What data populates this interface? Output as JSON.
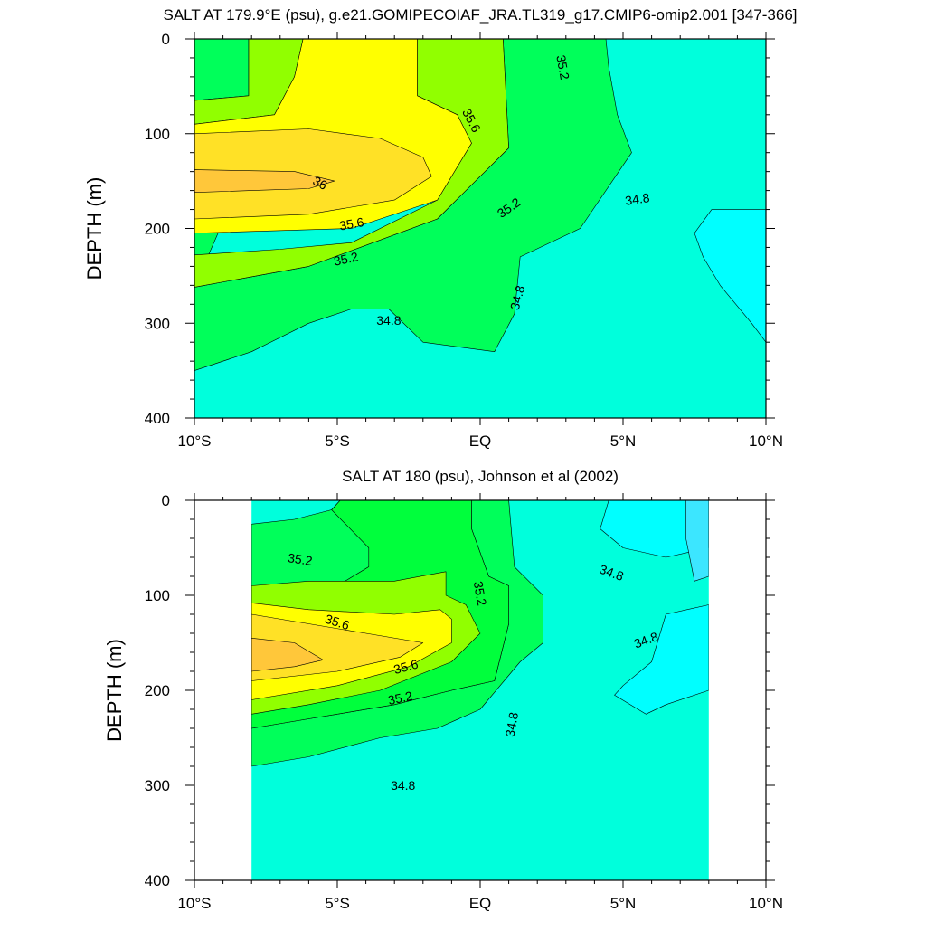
{
  "chart_data": [
    {
      "type": "contour",
      "title": "SALT AT 179.9°E (psu), g.e21.GOMIPECOIAF_JRA.TL319_g17.CMIP6-omip2.001 [347-366]",
      "ylabel": "DEPTH (m)",
      "xlabel": "",
      "x_ticks": [
        "10°S",
        "5°S",
        "EQ",
        "5°N",
        "10°N"
      ],
      "x_tick_values": [
        -10,
        -5,
        0,
        5,
        10
      ],
      "y_ticks": [
        "0",
        "100",
        "200",
        "300",
        "400"
      ],
      "y_tick_values": [
        0,
        100,
        200,
        300,
        400
      ],
      "xlim": [
        -10,
        10
      ],
      "ylim": [
        400,
        0
      ],
      "data_xlim": [
        -10,
        10
      ],
      "contour_interval": 0.2,
      "contour_labels": [
        {
          "text": "35.2",
          "x": 2.9,
          "y": 30,
          "angle": 80
        },
        {
          "text": "35.6",
          "x": -0.3,
          "y": 86,
          "angle": 62
        },
        {
          "text": "36",
          "x": -5.6,
          "y": 152,
          "angle": 28
        },
        {
          "text": "35.2",
          "x": 1.0,
          "y": 178,
          "angle": -35
        },
        {
          "text": "34.8",
          "x": 5.5,
          "y": 169,
          "angle": -8
        },
        {
          "text": "35.6",
          "x": -4.5,
          "y": 195,
          "angle": -10
        },
        {
          "text": "35.2",
          "x": -4.7,
          "y": 232,
          "angle": -12
        },
        {
          "text": "34.8",
          "x": 1.3,
          "y": 273,
          "angle": -75
        },
        {
          "text": "34.8",
          "x": -3.2,
          "y": 297,
          "angle": 0
        }
      ],
      "regions": [
        {
          "value": 35.0,
          "color": "#00ff5a",
          "points": [
            [
              -10,
              0
            ],
            [
              -8.1,
              0
            ],
            [
              -8.1,
              60
            ],
            [
              -10,
              65
            ]
          ]
        },
        {
          "value": 35.0,
          "color": "#00ff5a",
          "points": [
            [
              -6.2,
              0
            ],
            [
              -4.2,
              0
            ],
            [
              -3.5,
              15
            ],
            [
              -4.0,
              150
            ],
            [
              -10,
              160
            ],
            [
              -10,
              350
            ],
            [
              -8,
              330
            ],
            [
              -6,
              300
            ],
            [
              -4.5,
              285
            ],
            [
              -3.2,
              285
            ],
            [
              -2,
              320
            ],
            [
              0.5,
              330
            ],
            [
              1.2,
              290
            ],
            [
              1.4,
              230
            ],
            [
              3.5,
              200
            ],
            [
              5.3,
              120
            ],
            [
              4.8,
              80
            ],
            [
              4.5,
              30
            ],
            [
              4.4,
              0
            ],
            [
              0.8,
              0
            ],
            [
              1.0,
              115
            ],
            [
              -1.5,
              190
            ],
            [
              -6,
              240
            ],
            [
              -10,
              262
            ]
          ]
        },
        {
          "value": 35.4,
          "color": "#91ff00",
          "points": [
            [
              -10,
              65
            ],
            [
              -8.1,
              60
            ],
            [
              -8.1,
              0
            ],
            [
              -6.2,
              0
            ],
            [
              -6.5,
              40
            ],
            [
              -7.2,
              80
            ],
            [
              -10,
              90
            ]
          ]
        },
        {
          "value": 35.4,
          "color": "#91ff00",
          "points": [
            [
              -2.2,
              0
            ],
            [
              -2.2,
              60
            ],
            [
              -1.5,
              70
            ],
            [
              -0.8,
              80
            ],
            [
              -0.3,
              110
            ],
            [
              -1.5,
              170
            ],
            [
              -4.5,
              215
            ],
            [
              -7,
              222
            ],
            [
              -10,
              228
            ],
            [
              -10,
              262
            ],
            [
              -6,
              240
            ],
            [
              -1.5,
              190
            ],
            [
              1.0,
              115
            ],
            [
              0.8,
              0
            ]
          ]
        },
        {
          "value": 35.8,
          "color": "#ffff00",
          "points": [
            [
              -6.2,
              0
            ],
            [
              -2.2,
              0
            ],
            [
              -2.2,
              60
            ],
            [
              -1.5,
              70
            ],
            [
              -0.8,
              80
            ],
            [
              -0.3,
              110
            ],
            [
              -1.5,
              170
            ],
            [
              -4.5,
              200
            ],
            [
              -10,
              205
            ],
            [
              -10,
              90
            ],
            [
              -7.2,
              80
            ],
            [
              -6.5,
              40
            ]
          ]
        },
        {
          "value": 35.9,
          "color": "#ffe126",
          "points": [
            [
              -10,
              100
            ],
            [
              -6,
              95
            ],
            [
              -3.5,
              105
            ],
            [
              -2,
              125
            ],
            [
              -1.7,
              145
            ],
            [
              -3,
              170
            ],
            [
              -6,
              185
            ],
            [
              -10,
              190
            ]
          ]
        },
        {
          "value": 36.1,
          "color": "#ffc73a",
          "points": [
            [
              -10,
              138
            ],
            [
              -6.5,
              140
            ],
            [
              -5.1,
              150
            ],
            [
              -6,
              158
            ],
            [
              -8,
              160
            ],
            [
              -10,
              162
            ]
          ]
        },
        {
          "value": 34.6,
          "color": "#00ffff",
          "points": [
            [
              8.1,
              180
            ],
            [
              10,
              180
            ],
            [
              10,
              320
            ],
            [
              9.5,
              300
            ],
            [
              8.4,
              260
            ],
            [
              7.8,
              230
            ],
            [
              7.5,
              205
            ]
          ]
        }
      ]
    },
    {
      "type": "contour",
      "title": "SALT AT 180 (psu), Johnson et al (2002)",
      "ylabel": "DEPTH (m)",
      "xlabel": "",
      "x_ticks": [
        "10°S",
        "5°S",
        "EQ",
        "5°N",
        "10°N"
      ],
      "x_tick_values": [
        -10,
        -5,
        0,
        5,
        10
      ],
      "y_ticks": [
        "0",
        "100",
        "200",
        "300",
        "400"
      ],
      "y_tick_values": [
        0,
        100,
        200,
        300,
        400
      ],
      "xlim": [
        -10,
        10
      ],
      "ylim": [
        400,
        0
      ],
      "data_xlim": [
        -8,
        8
      ],
      "contour_interval": 0.2,
      "contour_labels": [
        {
          "text": "35.2",
          "x": -6.3,
          "y": 62,
          "angle": 8
        },
        {
          "text": "35.2",
          "x": 0.0,
          "y": 98,
          "angle": 80
        },
        {
          "text": "34.8",
          "x": 4.6,
          "y": 76,
          "angle": 20
        },
        {
          "text": "35.6",
          "x": -5.0,
          "y": 128,
          "angle": 18
        },
        {
          "text": "34.8",
          "x": 5.8,
          "y": 147,
          "angle": -20
        },
        {
          "text": "35.6",
          "x": -2.6,
          "y": 175,
          "angle": -15
        },
        {
          "text": "35.2",
          "x": -2.8,
          "y": 208,
          "angle": -12
        },
        {
          "text": "34.8",
          "x": 1.1,
          "y": 236,
          "angle": -80
        },
        {
          "text": "34.8",
          "x": -2.7,
          "y": 300,
          "angle": 0
        }
      ],
      "regions": [
        {
          "value": 35.0,
          "color": "#00ff5a",
          "points": [
            [
              -3.9,
              0
            ],
            [
              -0.3,
              0
            ],
            [
              -0.3,
              30
            ],
            [
              0.3,
              80
            ],
            [
              1.0,
              90
            ],
            [
              1.0,
              130
            ],
            [
              0.5,
              190
            ],
            [
              -1.0,
              200
            ],
            [
              -3.0,
              215
            ],
            [
              -6,
              230
            ],
            [
              -8,
              240
            ],
            [
              -8,
              280
            ],
            [
              -6,
              270
            ],
            [
              -3.5,
              250
            ],
            [
              -1.5,
              240
            ],
            [
              0,
              220
            ],
            [
              1.4,
              170
            ],
            [
              2.2,
              150
            ],
            [
              2.2,
              100
            ],
            [
              1.2,
              70
            ],
            [
              1.0,
              0
            ]
          ]
        },
        {
          "value": 35.0,
          "color": "#00ff5a",
          "points": [
            [
              -8,
              25
            ],
            [
              -6.5,
              20
            ],
            [
              -5.2,
              10
            ],
            [
              -4.9,
              0
            ],
            [
              -3.9,
              0
            ],
            [
              -3.9,
              70
            ],
            [
              -5,
              90
            ],
            [
              -8,
              95
            ]
          ]
        },
        {
          "value": 35.2,
          "color": "#00ff3c",
          "points": [
            [
              -4.9,
              0
            ],
            [
              -0.3,
              0
            ],
            [
              -0.3,
              30
            ],
            [
              0.3,
              80
            ],
            [
              1.0,
              90
            ],
            [
              1.0,
              130
            ],
            [
              0.5,
              190
            ],
            [
              -1.0,
              200
            ],
            [
              -3.0,
              215
            ],
            [
              -6,
              230
            ],
            [
              -8,
              240
            ],
            [
              -8,
              95
            ],
            [
              -5,
              90
            ],
            [
              -3.9,
              70
            ],
            [
              -3.9,
              50
            ],
            [
              -5.2,
              10
            ]
          ]
        },
        {
          "value": 35.4,
          "color": "#91ff00",
          "points": [
            [
              -8,
              90
            ],
            [
              -6,
              85
            ],
            [
              -3,
              85
            ],
            [
              -1.2,
              75
            ],
            [
              -1.2,
              100
            ],
            [
              -0.5,
              110
            ],
            [
              0,
              140
            ],
            [
              -1.0,
              170
            ],
            [
              -3.5,
              200
            ],
            [
              -6,
              215
            ],
            [
              -8,
              225
            ]
          ]
        },
        {
          "value": 35.8,
          "color": "#ffff00",
          "points": [
            [
              -8,
              108
            ],
            [
              -6,
              115
            ],
            [
              -3,
              120
            ],
            [
              -1.4,
              115
            ],
            [
              -1.0,
              125
            ],
            [
              -1.0,
              150
            ],
            [
              -2.5,
              175
            ],
            [
              -5,
              195
            ],
            [
              -8,
              210
            ]
          ]
        },
        {
          "value": 35.9,
          "color": "#ffe126",
          "points": [
            [
              -8,
              120
            ],
            [
              -6,
              130
            ],
            [
              -4,
              140
            ],
            [
              -2,
              150
            ],
            [
              -2.8,
              165
            ],
            [
              -5,
              180
            ],
            [
              -8,
              190
            ]
          ]
        },
        {
          "value": 36.1,
          "color": "#ffc73a",
          "points": [
            [
              -8,
              145
            ],
            [
              -6.5,
              150
            ],
            [
              -5.5,
              168
            ],
            [
              -6.5,
              175
            ],
            [
              -8,
              180
            ]
          ]
        },
        {
          "value": 34.6,
          "color": "#00ffff",
          "points": [
            [
              4.5,
              0
            ],
            [
              8,
              0
            ],
            [
              8,
              50
            ],
            [
              6.5,
              60
            ],
            [
              5,
              50
            ],
            [
              4.2,
              30
            ]
          ]
        },
        {
          "value": 34.6,
          "color": "#00ffff",
          "points": [
            [
              6.5,
              120
            ],
            [
              8,
              110
            ],
            [
              8,
              200
            ],
            [
              6.5,
              215
            ],
            [
              5.8,
              225
            ],
            [
              4.7,
              205
            ],
            [
              5,
              195
            ],
            [
              6,
              170
            ]
          ]
        },
        {
          "value": 34.4,
          "color": "#3ce6ff",
          "points": [
            [
              7.2,
              0
            ],
            [
              8,
              0
            ],
            [
              8,
              80
            ],
            [
              7.5,
              85
            ],
            [
              7.2,
              40
            ]
          ]
        }
      ]
    }
  ]
}
